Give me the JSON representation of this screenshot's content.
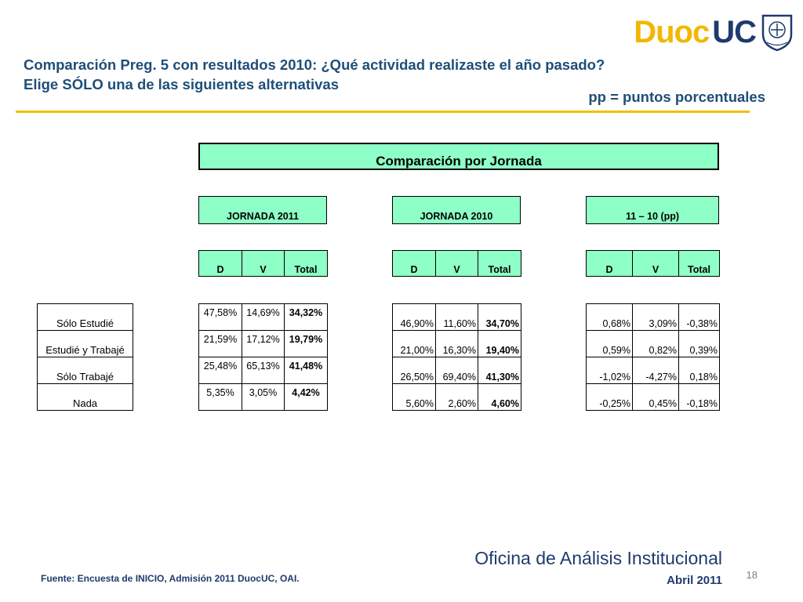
{
  "title_line1": "Comparación Preg. 5 con resultados 2010: ¿Qué actividad realizaste el año pasado?",
  "title_line2": "Elige SÓLO una de las siguientes alternativas",
  "pp_note": "pp = puntos porcentuales",
  "logo": {
    "part1": "Duoc",
    "part2": "UC"
  },
  "main_header": "Comparación por Jornada",
  "groups": [
    "JORNADA 2011",
    "JORNADA 2010",
    "11 – 10 (pp)"
  ],
  "cols": [
    "D",
    "V",
    "Total"
  ],
  "row_labels": [
    "Sólo Estudié",
    "Estudié y Trabajé",
    "Sólo Trabajé",
    "Nada"
  ],
  "t2011": [
    [
      "47,58%",
      "14,69%",
      "34,32%"
    ],
    [
      "21,59%",
      "17,12%",
      "19,79%"
    ],
    [
      "25,48%",
      "65,13%",
      "41,48%"
    ],
    [
      "5,35%",
      "3,05%",
      "4,42%"
    ]
  ],
  "t2010": [
    [
      "46,90%",
      "11,60%",
      "34,70%"
    ],
    [
      "21,00%",
      "16,30%",
      "19,40%"
    ],
    [
      "26,50%",
      "69,40%",
      "41,30%"
    ],
    [
      "5,60%",
      "2,60%",
      "4,60%"
    ]
  ],
  "tdiff": [
    [
      "0,68%",
      "3,09%",
      "-0,38%"
    ],
    [
      "0,59%",
      "0,82%",
      "0,39%"
    ],
    [
      "-1,02%",
      "-4,27%",
      "0,18%"
    ],
    [
      "-0,25%",
      "0,45%",
      "-0,18%"
    ]
  ],
  "footer": {
    "source": "Fuente: Encuesta de INICIO, Admisión 2011 DuocUC, OAI.",
    "office": "Oficina de Análisis Institucional",
    "date": "Abril 2011",
    "page": "18"
  },
  "colors": {
    "accent_green": "#8effc6",
    "brand_navy": "#1f3a6e",
    "brand_gold": "#f2b705",
    "rule": "#f0c000"
  }
}
